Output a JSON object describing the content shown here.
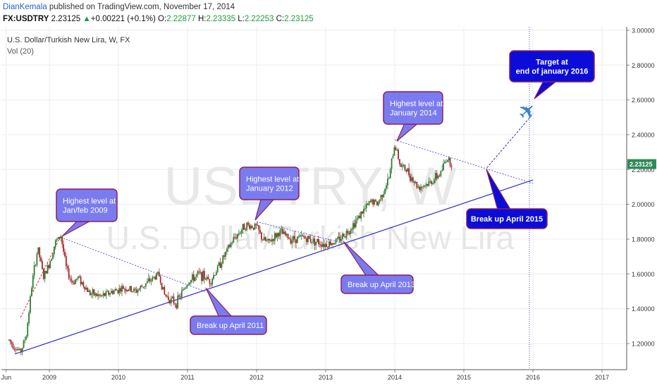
{
  "header": {
    "author": "DianKemala",
    "published": " published on TradingView.com, November 17, 2014",
    "symbol": "FX:USDTRY",
    "last": "2.23125",
    "change": "+0.00221 (+0.1%)",
    "o_label": "O:",
    "o_value": "2.22877",
    "h_label": "H:",
    "h_value": "2.23335",
    "l_label": "L:",
    "l_value": "2.22253",
    "c_label": "C:",
    "c_value": "2.23125"
  },
  "chart_title": "U.S. Dollar/Turkish New Lira, W, FX",
  "volume_label": "Vol (20)",
  "watermark": {
    "symbol": "USDTRY, W",
    "name": "U.S. Dollar/Turkish New Lira"
  },
  "colors": {
    "up": "#2e7d32",
    "down": "#a52a2a",
    "accent": "#2962c8",
    "trend": "#2a2ad0",
    "callout_fill": "#7b7bf0",
    "callout_dark": "#0c0cd8",
    "price_tag": "#2e8b57"
  },
  "chart_data": {
    "type": "candlestick",
    "interval": "weekly",
    "ylim": [
      1.05,
      3.02
    ],
    "y_ticks": [
      "1.20000",
      "1.40000",
      "1.60000",
      "1.80000",
      "2.00000",
      "2.20000",
      "2.40000",
      "2.60000",
      "2.80000",
      "3.00000"
    ],
    "x_ticks": [
      "Jun",
      "2009",
      "2010",
      "2011",
      "2012",
      "2013",
      "2014",
      "2015",
      "2016",
      "2017"
    ],
    "last_price": "2.23125",
    "price_path": [
      [
        "2008-06",
        1.22
      ],
      [
        "2008-07",
        1.18
      ],
      [
        "2008-08",
        1.15
      ],
      [
        "2008-09",
        1.25
      ],
      [
        "2008-10",
        1.55
      ],
      [
        "2008-11",
        1.75
      ],
      [
        "2008-12",
        1.58
      ],
      [
        "2009-01",
        1.66
      ],
      [
        "2009-02",
        1.78
      ],
      [
        "2009-03",
        1.82
      ],
      [
        "2009-04",
        1.62
      ],
      [
        "2009-05",
        1.55
      ],
      [
        "2009-06",
        1.58
      ],
      [
        "2009-08",
        1.49
      ],
      [
        "2009-10",
        1.47
      ],
      [
        "2009-12",
        1.5
      ],
      [
        "2010-02",
        1.52
      ],
      [
        "2010-04",
        1.5
      ],
      [
        "2010-06",
        1.55
      ],
      [
        "2010-08",
        1.6
      ],
      [
        "2010-09",
        1.48
      ],
      [
        "2010-11",
        1.43
      ],
      [
        "2011-01",
        1.55
      ],
      [
        "2011-03",
        1.6
      ],
      [
        "2011-05",
        1.56
      ],
      [
        "2011-07",
        1.68
      ],
      [
        "2011-09",
        1.8
      ],
      [
        "2011-11",
        1.88
      ],
      [
        "2012-01",
        1.87
      ],
      [
        "2012-02",
        1.8
      ],
      [
        "2012-03",
        1.78
      ],
      [
        "2012-05",
        1.84
      ],
      [
        "2012-07",
        1.8
      ],
      [
        "2012-09",
        1.81
      ],
      [
        "2012-11",
        1.79
      ],
      [
        "2013-01",
        1.77
      ],
      [
        "2013-03",
        1.79
      ],
      [
        "2013-05",
        1.85
      ],
      [
        "2013-07",
        1.94
      ],
      [
        "2013-09",
        2.02
      ],
      [
        "2013-10",
        2.0
      ],
      [
        "2013-12",
        2.15
      ],
      [
        "2014-01",
        2.35
      ],
      [
        "2014-02",
        2.22
      ],
      [
        "2014-03",
        2.2
      ],
      [
        "2014-05",
        2.1
      ],
      [
        "2014-07",
        2.12
      ],
      [
        "2014-09",
        2.18
      ],
      [
        "2014-10",
        2.27
      ],
      [
        "2014-11",
        2.23
      ]
    ],
    "lines": [
      {
        "name": "support-trendline",
        "from": [
          "2008-07",
          1.14
        ],
        "to": [
          "2016-01",
          2.14
        ]
      },
      {
        "name": "falling-line-2009",
        "from": [
          "2009-03",
          1.81
        ],
        "to": [
          "2011-04",
          1.5
        ]
      },
      {
        "name": "falling-line-2012",
        "from": [
          "2012-01",
          1.9
        ],
        "to": [
          "2013-05",
          1.77
        ]
      },
      {
        "name": "falling-line-2014",
        "from": [
          "2014-01",
          2.37
        ],
        "to": [
          "2016-01",
          2.12
        ]
      },
      {
        "name": "projection-line",
        "from": [
          "2015-05",
          2.21
        ],
        "to": [
          "2016-01",
          2.52
        ]
      },
      {
        "name": "surge-line-2008",
        "from": [
          "2008-08",
          1.35
        ],
        "to": [
          "2009-03",
          1.82
        ]
      }
    ],
    "target_date_line": "2016-01",
    "annotations": [
      {
        "name": "callout-2009-high",
        "text": [
          "Highest level at",
          "Jan/feb 2009"
        ]
      },
      {
        "name": "callout-2012-high",
        "text": [
          "Highest level at",
          "January 2012"
        ]
      },
      {
        "name": "callout-2014-high",
        "text": [
          "Highest level at",
          "January 2014"
        ]
      },
      {
        "name": "callout-break-2011",
        "text": [
          "Break up April 2011"
        ]
      },
      {
        "name": "callout-break-2013",
        "text": [
          "Break up April 2013"
        ]
      },
      {
        "name": "callout-break-2015",
        "text": [
          "Break up April 2015"
        ]
      },
      {
        "name": "callout-target-2016",
        "text": [
          "Target at",
          "end of january 2016"
        ]
      }
    ]
  }
}
